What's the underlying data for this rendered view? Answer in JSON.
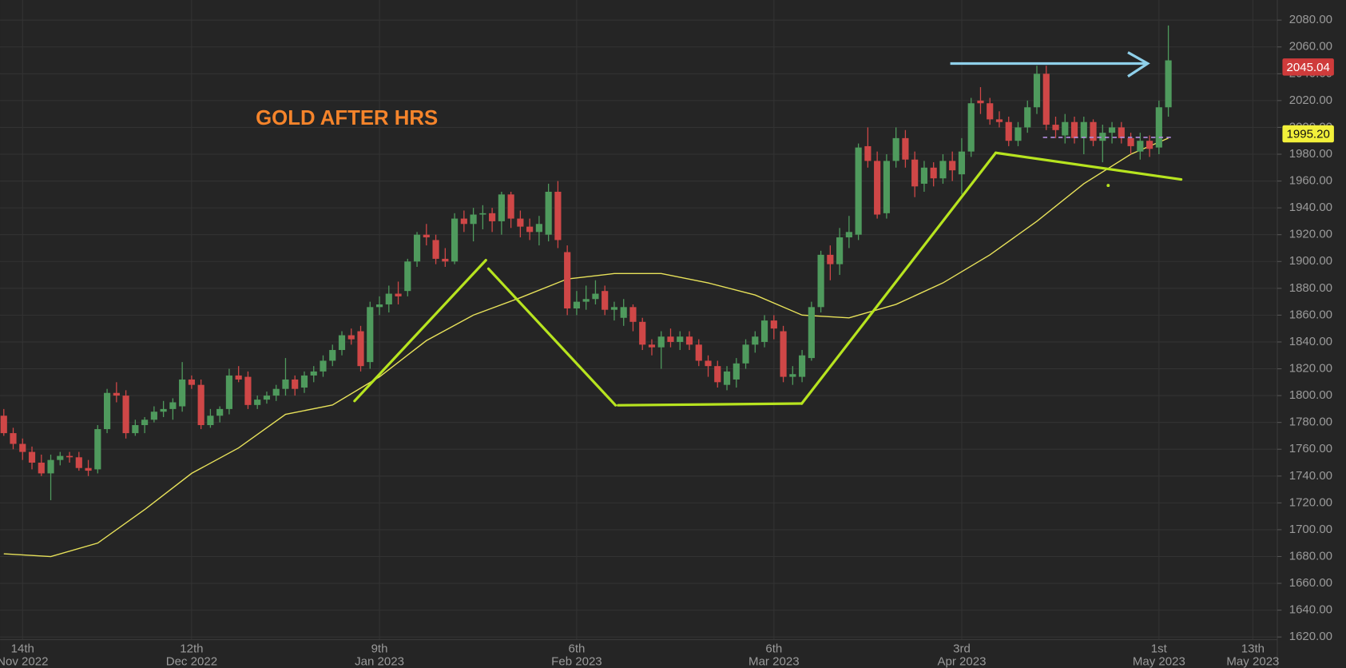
{
  "chart_data": {
    "type": "candlestick",
    "title": "GOLD AFTER HRS",
    "xlim": [
      -0.4,
      135.6
    ],
    "ylim": [
      1618,
      2095
    ],
    "grid": true,
    "up_color": "#4f9a5d",
    "down_color": "#cf4747",
    "xticks": [
      {
        "value": 2,
        "label": "14th",
        "sublabel": "Nov 2022"
      },
      {
        "value": 20,
        "label": "12th",
        "sublabel": "Dec 2022"
      },
      {
        "value": 40,
        "label": "9th",
        "sublabel": "Jan 2023"
      },
      {
        "value": 61,
        "label": "6th",
        "sublabel": "Feb 2023"
      },
      {
        "value": 82,
        "label": "6th",
        "sublabel": "Mar 2023"
      },
      {
        "value": 102,
        "label": "3rd",
        "sublabel": "Apr 2023"
      },
      {
        "value": 123,
        "label": "1st",
        "sublabel": "May 2023"
      },
      {
        "value": 133,
        "label": "13th",
        "sublabel": "May 2023"
      }
    ],
    "yticks": [
      {
        "value": 1620,
        "label": "1620.00"
      },
      {
        "value": 1640,
        "label": "1640.00"
      },
      {
        "value": 1660,
        "label": "1660.00"
      },
      {
        "value": 1680,
        "label": "1680.00"
      },
      {
        "value": 1700,
        "label": "1700.00"
      },
      {
        "value": 1720,
        "label": "1720.00"
      },
      {
        "value": 1740,
        "label": "1740.00"
      },
      {
        "value": 1760,
        "label": "1760.00"
      },
      {
        "value": 1780,
        "label": "1780.00"
      },
      {
        "value": 1800,
        "label": "1800.00"
      },
      {
        "value": 1820,
        "label": "1820.00"
      },
      {
        "value": 1840,
        "label": "1840.00"
      },
      {
        "value": 1860,
        "label": "1860.00"
      },
      {
        "value": 1880,
        "label": "1880.00"
      },
      {
        "value": 1900,
        "label": "1900.00"
      },
      {
        "value": 1920,
        "label": "1920.00"
      },
      {
        "value": 1940,
        "label": "1940.00"
      },
      {
        "value": 1960,
        "label": "1960.00"
      },
      {
        "value": 1980,
        "label": "1980.00"
      },
      {
        "value": 2000,
        "label": "2000.00"
      },
      {
        "value": 2020,
        "label": "2020.00"
      },
      {
        "value": 2040,
        "label": "2040.00"
      },
      {
        "value": 2060,
        "label": "2060.00"
      },
      {
        "value": 2080,
        "label": "2080.00"
      }
    ],
    "open": [
      1785,
      1772,
      1764,
      1758,
      1750,
      1742,
      1752,
      1755,
      1754,
      1746,
      1745,
      1775,
      1802,
      1800,
      1772,
      1778,
      1782,
      1788,
      1790,
      1792,
      1812,
      1808,
      1778,
      1785,
      1790,
      1815,
      1814,
      1793,
      1797,
      1800,
      1805,
      1812,
      1806,
      1815,
      1818,
      1826,
      1834,
      1845,
      1848,
      1825,
      1866,
      1868,
      1876,
      1878,
      1900,
      1920,
      1916,
      1902,
      1900,
      1932,
      1928,
      1935,
      1936,
      1930,
      1950,
      1932,
      1926,
      1922,
      1920,
      1952,
      1907,
      1865,
      1870,
      1872,
      1878,
      1864,
      1858,
      1866,
      1855,
      1838,
      1836,
      1844,
      1840,
      1844,
      1838,
      1826,
      1822,
      1808,
      1812,
      1824,
      1838,
      1840,
      1856,
      1848,
      1814,
      1814,
      1828,
      1866,
      1905,
      1898,
      1918,
      1920,
      1986,
      1975,
      1936,
      1975,
      1992,
      1976,
      1958,
      1970,
      1962,
      1975,
      1965,
      1982,
      2020,
      2018,
      2006,
      2004,
      1990,
      2000,
      2015,
      2040,
      2002,
      1994,
      2004,
      1992,
      2004,
      1990,
      1996,
      2000,
      1992,
      1982,
      1990,
      1985,
      2015
    ],
    "high": [
      1790,
      1776,
      1768,
      1762,
      1756,
      1756,
      1758,
      1758,
      1758,
      1752,
      1778,
      1805,
      1810,
      1804,
      1782,
      1784,
      1792,
      1796,
      1798,
      1825,
      1815,
      1812,
      1790,
      1792,
      1820,
      1822,
      1818,
      1800,
      1803,
      1808,
      1828,
      1815,
      1818,
      1822,
      1830,
      1838,
      1848,
      1850,
      1852,
      1870,
      1874,
      1882,
      1885,
      1902,
      1922,
      1928,
      1920,
      1910,
      1936,
      1938,
      1940,
      1942,
      1940,
      1952,
      1952,
      1938,
      1932,
      1934,
      1958,
      1960,
      1912,
      1878,
      1882,
      1886,
      1882,
      1870,
      1872,
      1868,
      1858,
      1842,
      1848,
      1850,
      1848,
      1848,
      1842,
      1830,
      1826,
      1822,
      1828,
      1842,
      1848,
      1860,
      1860,
      1852,
      1822,
      1834,
      1870,
      1908,
      1912,
      1925,
      1934,
      1988,
      2000,
      1982,
      1980,
      2000,
      1998,
      1982,
      1975,
      1974,
      1980,
      1982,
      1992,
      2022,
      2030,
      2022,
      2012,
      2008,
      2004,
      2020,
      2046,
      2046,
      2008,
      2010,
      2008,
      2008,
      2006,
      2002,
      2004,
      2004,
      1996,
      1996,
      1994,
      2020,
      2076
    ],
    "low": [
      1770,
      1760,
      1752,
      1745,
      1740,
      1722,
      1748,
      1750,
      1744,
      1740,
      1742,
      1772,
      1795,
      1768,
      1770,
      1772,
      1780,
      1784,
      1782,
      1788,
      1805,
      1775,
      1776,
      1780,
      1786,
      1810,
      1790,
      1790,
      1794,
      1796,
      1800,
      1800,
      1802,
      1810,
      1814,
      1822,
      1830,
      1838,
      1818,
      1820,
      1860,
      1862,
      1868,
      1874,
      1896,
      1912,
      1898,
      1896,
      1898,
      1922,
      1915,
      1924,
      1922,
      1920,
      1925,
      1918,
      1916,
      1912,
      1915,
      1910,
      1860,
      1860,
      1864,
      1868,
      1860,
      1856,
      1852,
      1848,
      1834,
      1830,
      1820,
      1836,
      1834,
      1834,
      1822,
      1814,
      1806,
      1804,
      1806,
      1820,
      1832,
      1836,
      1842,
      1810,
      1808,
      1810,
      1826,
      1862,
      1886,
      1890,
      1910,
      1916,
      1970,
      1932,
      1932,
      1970,
      1970,
      1948,
      1952,
      1956,
      1958,
      1960,
      1950,
      1978,
      2010,
      2002,
      2000,
      1986,
      1986,
      1996,
      2010,
      1998,
      1992,
      1988,
      1988,
      1980,
      1986,
      1974,
      1988,
      1988,
      1980,
      1976,
      1978,
      1980,
      2008
    ],
    "close": [
      1772,
      1764,
      1758,
      1750,
      1742,
      1752,
      1755,
      1754,
      1746,
      1744,
      1775,
      1802,
      1800,
      1772,
      1778,
      1782,
      1788,
      1790,
      1795,
      1812,
      1808,
      1778,
      1785,
      1790,
      1815,
      1812,
      1793,
      1797,
      1800,
      1805,
      1812,
      1805,
      1815,
      1818,
      1826,
      1834,
      1845,
      1842,
      1822,
      1866,
      1868,
      1876,
      1874,
      1900,
      1920,
      1918,
      1902,
      1900,
      1932,
      1928,
      1935,
      1936,
      1930,
      1950,
      1932,
      1926,
      1922,
      1928,
      1952,
      1916,
      1865,
      1870,
      1872,
      1876,
      1864,
      1866,
      1866,
      1855,
      1838,
      1836,
      1844,
      1840,
      1844,
      1838,
      1826,
      1822,
      1810,
      1818,
      1824,
      1838,
      1844,
      1856,
      1850,
      1814,
      1816,
      1830,
      1866,
      1905,
      1898,
      1918,
      1922,
      1985,
      1975,
      1935,
      1975,
      1992,
      1976,
      1956,
      1970,
      1962,
      1975,
      1968,
      1982,
      2018,
      2018,
      2006,
      2004,
      1990,
      2000,
      2015,
      2040,
      2002,
      1998,
      2004,
      1992,
      2004,
      1990,
      1996,
      2000,
      1992,
      1986,
      1990,
      1984,
      2015,
      2050
    ],
    "moving_average": {
      "color": "#e8e25a",
      "x": [
        0,
        5,
        10,
        15,
        20,
        25,
        30,
        35,
        40,
        45,
        50,
        55,
        60,
        65,
        70,
        75,
        80,
        85,
        90,
        95,
        100,
        105,
        110,
        115,
        120,
        124
      ],
      "values": [
        1682,
        1680,
        1690,
        1715,
        1742,
        1761,
        1786,
        1793,
        1814,
        1841,
        1860,
        1873,
        1887,
        1891,
        1891,
        1884,
        1875,
        1860,
        1858,
        1868,
        1884,
        1905,
        1930,
        1958,
        1980,
        1992
      ]
    },
    "price_labels": [
      {
        "value": 2045.04,
        "color": "#cf3b3b",
        "text_color": "#ffffff"
      },
      {
        "value": {
          "value": 1995.2,
          "label": "1995.20"
        },
        "color": "#f2f03a",
        "text_color": "#111111"
      }
    ]
  }
}
